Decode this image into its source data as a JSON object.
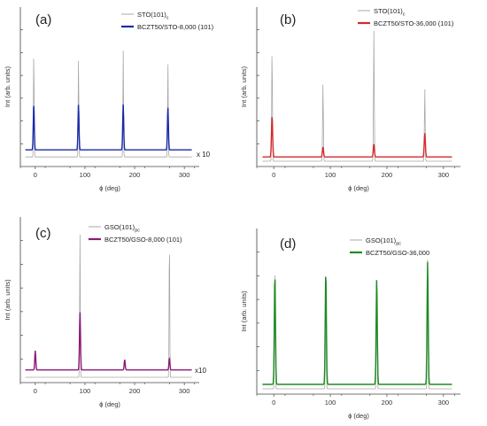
{
  "chart_data": [
    {
      "type": "line",
      "panel_label": "(a)",
      "xlabel": "ϕ (deg)",
      "ylabel": "Int (arb. units)",
      "xlim": [
        -30,
        330
      ],
      "xticks": [
        0,
        100,
        200,
        300
      ],
      "annotation": "x 10",
      "grid": false,
      "legend_position": "top-right",
      "series": [
        {
          "name": "STO(101)",
          "name_sub": "c",
          "color": "#a8a8a8",
          "x": [
            -3,
            87,
            177,
            267
          ],
          "y": [
            0.78,
            0.72,
            0.78,
            0.7
          ],
          "baseline": 0.03
        },
        {
          "name": "BCZT50/STO-8,000 (101)",
          "name_sub": "",
          "color": "#1a2aa8",
          "x": [
            -3,
            87,
            177,
            267
          ],
          "y": [
            0.4,
            0.4,
            0.4,
            0.38
          ],
          "baseline": 0.08
        }
      ]
    },
    {
      "type": "line",
      "panel_label": "(b)",
      "xlabel": "ϕ (deg)",
      "ylabel": "Int (arb. units)",
      "xlim": [
        -30,
        330
      ],
      "xticks": [
        0,
        100,
        200,
        300
      ],
      "grid": false,
      "legend_position": "top-right",
      "series": [
        {
          "name": "STO(101)",
          "name_sub": "c",
          "color": "#a8a8a8",
          "x": [
            -3,
            87,
            177,
            267
          ],
          "y": [
            0.8,
            0.55,
            0.92,
            0.52
          ],
          "baseline": 0.0
        },
        {
          "name": "BCZT50/STO-36,000 (101)",
          "name_sub": "",
          "color": "#d42a2a",
          "x": [
            -3,
            87,
            177,
            267
          ],
          "y": [
            0.32,
            0.1,
            0.12,
            0.2
          ],
          "baseline": 0.03
        }
      ]
    },
    {
      "type": "line",
      "panel_label": "(c)",
      "xlabel": "ϕ (deg)",
      "ylabel": "Int (arb. units)",
      "xlim": [
        -30,
        330
      ],
      "xticks": [
        0,
        100,
        200,
        300
      ],
      "annotation": "x10",
      "grid": false,
      "legend_position": "top-right",
      "series": [
        {
          "name": "GSO(101)",
          "name_sub": "pc",
          "color": "#a8a8a8",
          "x": [
            90,
            270
          ],
          "y": [
            0.97,
            0.95
          ],
          "baseline": 0.0
        },
        {
          "name": "BCZT50/GSO-8,000 (101)",
          "name_sub": "",
          "color": "#8a1a78",
          "x": [
            0,
            90,
            180,
            270
          ],
          "y": [
            0.18,
            0.44,
            0.12,
            0.13
          ],
          "baseline": 0.05
        }
      ]
    },
    {
      "type": "line",
      "panel_label": "(d)",
      "xlabel": "ϕ (deg)",
      "ylabel": "Int (arb. units)",
      "xlim": [
        -30,
        330
      ],
      "xticks": [
        0,
        100,
        200,
        300
      ],
      "grid": false,
      "legend_position": "top-right",
      "series": [
        {
          "name": "GSO(101)",
          "name_sub": "pc",
          "color": "#a8a8a8",
          "x": [
            2,
            92,
            182,
            272
          ],
          "y": [
            0.88,
            0.8,
            0.75,
            0.88
          ],
          "baseline": 0.0
        },
        {
          "name": "BCZT50/GSO-36,000",
          "name_sub": "",
          "color": "#1e8a24",
          "x": [
            2,
            92,
            182,
            272
          ],
          "y": [
            0.78,
            0.8,
            0.75,
            0.86
          ],
          "baseline": 0.03
        }
      ]
    }
  ]
}
